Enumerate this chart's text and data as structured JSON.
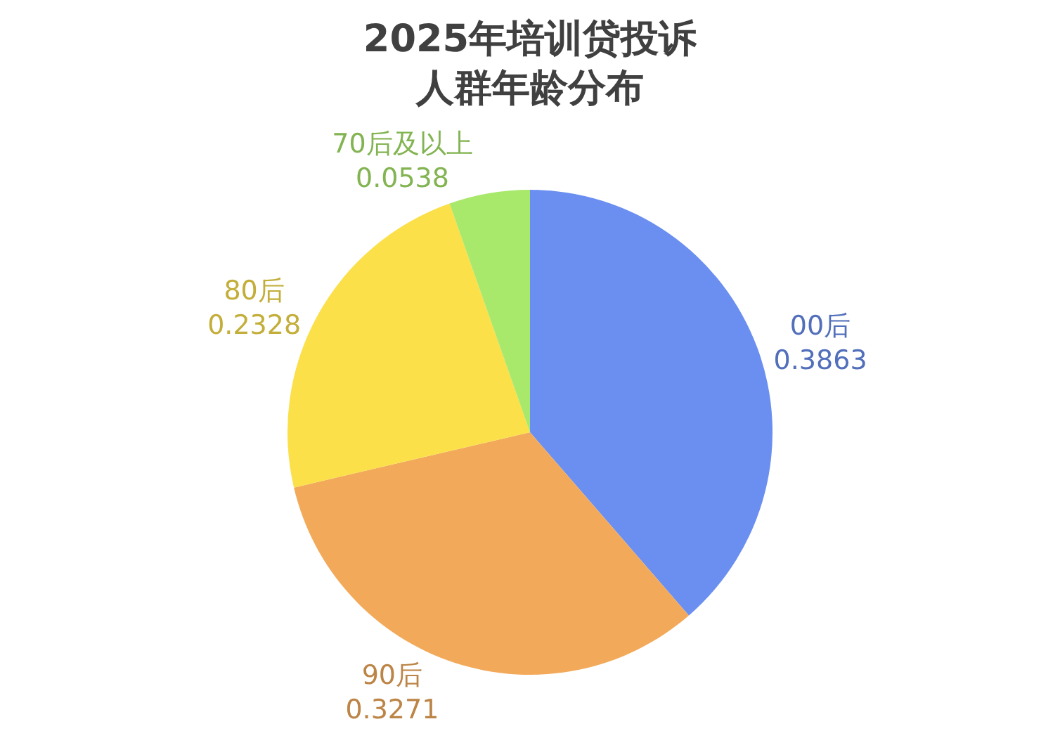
{
  "chart_data": {
    "type": "pie",
    "title": "2025年培训贷投诉人群年龄分布",
    "categories": [
      "00后",
      "90后",
      "80后",
      "70后及以上"
    ],
    "values": [
      0.3863,
      0.3271,
      0.2328,
      0.0538
    ],
    "colors": [
      "#6a8ff0",
      "#f2aa5a",
      "#fbe04a",
      "#a8e86a"
    ],
    "data_labels": true,
    "legend": false
  }
}
